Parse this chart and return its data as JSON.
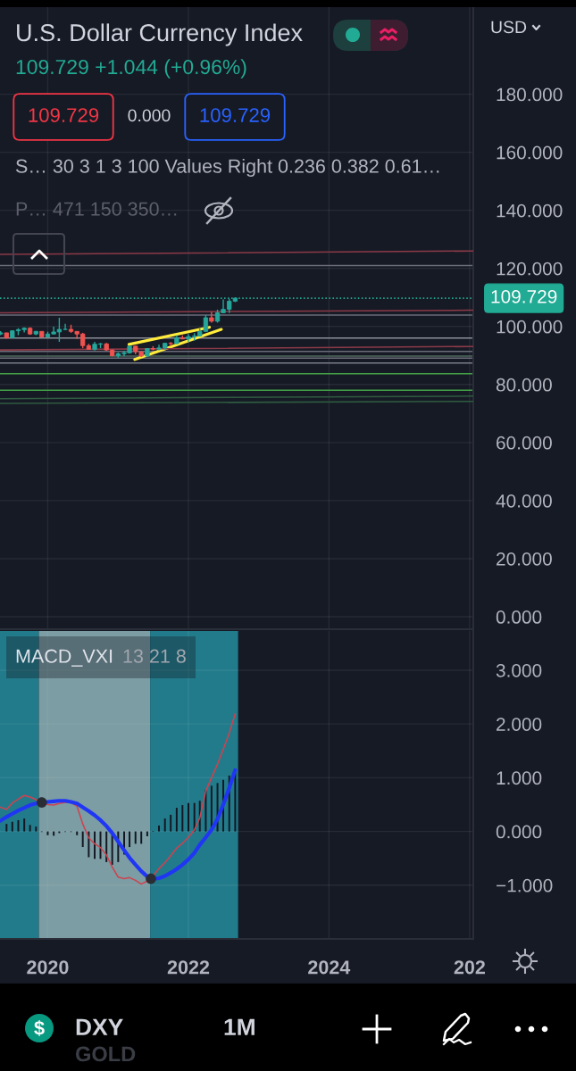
{
  "chart_data": [
    {
      "type": "candlestick",
      "title": "U.S. Dollar Currency Index",
      "subtitle": "109.729 +1.044 (+0.96%)",
      "annotations": [
        "109.729",
        "0.000",
        "109.729",
        "S… 30 3 1 3 100 Values Right 0.236 0.382 0.61…",
        "P… 471 150 350…",
        "USD",
        "DXY",
        "1M",
        "GOLD"
      ],
      "series": [
        {
          "x": [
            "2019-05",
            "2019-06",
            "2019-07",
            "2019-08",
            "2019-09",
            "2019-10",
            "2019-11",
            "2019-12",
            "2020-01",
            "2020-02",
            "2020-03",
            "2020-04",
            "2020-05",
            "2020-06",
            "2020-07",
            "2020-08",
            "2020-09",
            "2020-10",
            "2020-11",
            "2020-12",
            "2021-01",
            "2021-02",
            "2021-03",
            "2021-04",
            "2021-05",
            "2021-06",
            "2021-07",
            "2021-08",
            "2021-09",
            "2021-10",
            "2021-11",
            "2021-12",
            "2022-01",
            "2022-02",
            "2022-03",
            "2022-04",
            "2022-05",
            "2022-06",
            "2022-07",
            "2022-08",
            "2022-09"
          ],
          "ohlc": [
            [
              97.4,
              98.4,
              97.0,
              97.8
            ],
            [
              97.8,
              97.8,
              95.8,
              96.1
            ],
            [
              96.1,
              98.7,
              95.9,
              98.5
            ],
            [
              98.5,
              99.4,
              97.0,
              98.9
            ],
            [
              98.9,
              99.7,
              97.9,
              99.4
            ],
            [
              99.4,
              99.7,
              97.1,
              97.4
            ],
            [
              97.4,
              98.5,
              97.0,
              98.3
            ],
            [
              98.3,
              98.3,
              96.4,
              96.4
            ],
            [
              96.4,
              98.2,
              96.2,
              97.4
            ],
            [
              97.4,
              99.9,
              97.3,
              98.1
            ],
            [
              98.1,
              103.0,
              94.7,
              99.0
            ],
            [
              99.0,
              100.9,
              98.8,
              99.0
            ],
            [
              99.0,
              100.6,
              97.8,
              98.3
            ],
            [
              98.3,
              98.3,
              95.7,
              97.4
            ],
            [
              97.4,
              97.8,
              92.5,
              93.4
            ],
            [
              93.4,
              94.0,
              92.1,
              92.1
            ],
            [
              92.1,
              94.7,
              91.7,
              93.9
            ],
            [
              93.9,
              94.3,
              92.5,
              94.0
            ],
            [
              94.0,
              94.3,
              91.6,
              91.9
            ],
            [
              91.9,
              92.0,
              89.7,
              89.9
            ],
            [
              89.9,
              91.0,
              89.2,
              90.6
            ],
            [
              90.6,
              91.6,
              89.7,
              90.9
            ],
            [
              90.9,
              93.4,
              90.6,
              93.2
            ],
            [
              93.2,
              93.4,
              90.4,
              91.3
            ],
            [
              91.3,
              91.4,
              89.5,
              89.8
            ],
            [
              89.8,
              92.4,
              89.5,
              92.4
            ],
            [
              92.4,
              93.2,
              91.8,
              92.2
            ],
            [
              92.2,
              93.7,
              91.8,
              92.6
            ],
            [
              92.6,
              94.4,
              91.9,
              94.2
            ],
            [
              94.2,
              94.6,
              93.3,
              94.1
            ],
            [
              94.1,
              96.9,
              93.9,
              96.0
            ],
            [
              96.0,
              96.9,
              95.6,
              95.7
            ],
            [
              95.7,
              97.4,
              94.6,
              96.5
            ],
            [
              96.5,
              97.7,
              95.1,
              96.7
            ],
            [
              96.7,
              99.4,
              96.7,
              98.3
            ],
            [
              98.3,
              103.9,
              98.2,
              103.0
            ],
            [
              103.0,
              105.0,
              101.3,
              101.8
            ],
            [
              101.8,
              105.8,
              101.3,
              104.7
            ],
            [
              104.7,
              109.3,
              104.6,
              105.9
            ],
            [
              105.9,
              109.5,
              104.6,
              108.7
            ],
            [
              108.7,
              110.0,
              108.4,
              109.729
            ]
          ],
          "colors": [
            "#26a69a",
            "#ef5350",
            "#26a69a",
            "#26a69a",
            "#26a69a",
            "#ef5350",
            "#26a69a",
            "#ef5350",
            "#26a69a",
            "#26a69a",
            "#26a69a",
            "#26a69a",
            "#ef5350",
            "#ef5350",
            "#ef5350",
            "#ef5350",
            "#26a69a",
            "#26a69a",
            "#ef5350",
            "#ef5350",
            "#26a69a",
            "#26a69a",
            "#26a69a",
            "#ef5350",
            "#ef5350",
            "#26a69a",
            "#ef5350",
            "#26a69a",
            "#26a69a",
            "#ef5350",
            "#26a69a",
            "#ef5350",
            "#26a69a",
            "#26a69a",
            "#26a69a",
            "#26a69a",
            "#ef5350",
            "#26a69a",
            "#26a69a",
            "#26a69a",
            "#26a69a"
          ]
        },
        {
          "type": "line",
          "color": "#ffeb3b",
          "x": [
            "2021-02-26",
            "2022-04-20"
          ],
          "values": [
            93.8,
            99.7
          ]
        },
        {
          "type": "line",
          "color": "#ffeb3b",
          "x": [
            "2021-03-28",
            "2022-06-21"
          ],
          "values": [
            88.6,
            99.0
          ]
        },
        {
          "type": "line",
          "color": "#8c3a48",
          "x": [
            "2019-04-28",
            "2026-01-20"
          ],
          "values": [
            124.8,
            126.0
          ]
        },
        {
          "type": "line",
          "color": "#8c3a48",
          "x": [
            "2019-04-28",
            "2026-01-20"
          ],
          "values": [
            104.7,
            105.6
          ]
        },
        {
          "type": "line",
          "color": "#8c3a48",
          "x": [
            "2019-04-28",
            "2026-01-20"
          ],
          "values": [
            91.9,
            93.1
          ]
        },
        {
          "type": "line",
          "color": "#2f5b40",
          "x": [
            "2019-04-28",
            "2026-01-20"
          ],
          "values": [
            75.1,
            76.0
          ]
        },
        {
          "type": "line",
          "color": "#2f5b40",
          "x": [
            "2019-04-28",
            "2026-01-20"
          ],
          "values": [
            73.5,
            74.2
          ]
        }
      ],
      "ref_lines": [
        {
          "axis": "y",
          "value": 109.729,
          "label": "109.729",
          "color": "#22ab94",
          "line_style": "dotted"
        },
        {
          "axis": "y",
          "value": 121.0,
          "color": "#6a6d78"
        },
        {
          "axis": "y",
          "value": 103.9,
          "color": "#6a6d78"
        },
        {
          "axis": "y",
          "value": 96.0,
          "color": "#8a8d96"
        },
        {
          "axis": "y",
          "value": 91.4,
          "color": "#6a6d78"
        },
        {
          "axis": "y",
          "value": 89.8,
          "color": "#4f6b5c"
        },
        {
          "axis": "y",
          "value": 89.1,
          "color": "#6a6d78"
        },
        {
          "axis": "y",
          "value": 87.4,
          "color": "#7a7d86"
        },
        {
          "axis": "y",
          "value": 83.7,
          "color": "#43a047"
        },
        {
          "axis": "y",
          "value": 78.0,
          "color": "#43a047"
        }
      ],
      "xlim": [
        "2019-04-28",
        "2026-01-20"
      ],
      "xticks": [
        "2020",
        "2022",
        "2024",
        "2026"
      ],
      "ylim": [
        -4.3,
        210
      ],
      "yticks": [
        {
          "value": 0,
          "label": "0.000"
        },
        {
          "value": 20,
          "label": "20.000"
        },
        {
          "value": 40,
          "label": "40.000"
        },
        {
          "value": 60,
          "label": "60.000"
        },
        {
          "value": 80,
          "label": "80.000"
        },
        {
          "value": 100,
          "label": "100.000"
        },
        {
          "value": 120,
          "label": "120.000"
        },
        {
          "value": 140,
          "label": "140.000"
        },
        {
          "value": 160,
          "label": "160.000"
        },
        {
          "value": 180,
          "label": "180.000"
        }
      ],
      "grid": true,
      "tick_labels": "y"
    },
    {
      "type": "line",
      "title": "MACD_VXI",
      "subtitle": "13 21 8",
      "series": [
        {
          "type": "bar",
          "color": "#131722",
          "x": [
            "2019-06",
            "2019-07",
            "2019-08",
            "2019-09",
            "2019-10",
            "2019-11",
            "2019-12",
            "2020-01",
            "2020-02",
            "2020-03",
            "2020-04",
            "2020-05",
            "2020-06",
            "2020-07",
            "2020-08",
            "2020-09",
            "2020-10",
            "2020-11",
            "2020-12",
            "2021-01",
            "2021-02",
            "2021-03",
            "2021-04",
            "2021-05",
            "2021-06",
            "2021-07",
            "2021-08",
            "2021-09",
            "2021-10",
            "2021-11",
            "2021-12",
            "2022-01",
            "2022-02",
            "2022-03",
            "2022-04",
            "2022-05",
            "2022-06",
            "2022-07",
            "2022-08",
            "2022-09"
          ],
          "values": [
            0.14,
            0.18,
            0.21,
            0.24,
            0.12,
            0.09,
            -0.01,
            -0.07,
            -0.08,
            -0.03,
            -0.01,
            -0.01,
            -0.07,
            -0.29,
            -0.48,
            -0.51,
            -0.51,
            -0.57,
            -0.62,
            -0.57,
            -0.43,
            -0.29,
            -0.23,
            -0.23,
            -0.09,
            0.01,
            0.11,
            0.24,
            0.31,
            0.44,
            0.49,
            0.53,
            0.53,
            0.57,
            0.77,
            0.85,
            0.9,
            0.96,
            1.04,
            1.09
          ]
        },
        {
          "color": "#d0424f",
          "x": [
            "2019-05",
            "2019-06",
            "2019-07",
            "2019-08",
            "2019-09",
            "2019-10",
            "2019-11",
            "2019-12",
            "2020-01",
            "2020-02",
            "2020-03",
            "2020-04",
            "2020-05",
            "2020-06",
            "2020-07",
            "2020-08",
            "2020-09",
            "2020-10",
            "2020-11",
            "2020-12",
            "2021-01",
            "2021-02",
            "2021-03",
            "2021-04",
            "2021-05",
            "2021-06",
            "2021-07",
            "2021-08",
            "2021-09",
            "2021-10",
            "2021-11",
            "2021-12",
            "2022-01",
            "2022-02",
            "2022-03",
            "2022-04",
            "2022-05",
            "2022-06",
            "2022-07",
            "2022-08",
            "2022-09"
          ],
          "values": [
            0.45,
            0.41,
            0.53,
            0.6,
            0.67,
            0.64,
            0.59,
            0.54,
            0.5,
            0.49,
            0.52,
            0.54,
            0.54,
            0.47,
            0.14,
            -0.12,
            -0.23,
            -0.3,
            -0.44,
            -0.66,
            -0.85,
            -0.88,
            -0.86,
            -0.91,
            -0.98,
            -0.92,
            -0.83,
            -0.69,
            -0.58,
            -0.45,
            -0.31,
            -0.22,
            -0.11,
            0.03,
            0.25,
            0.75,
            1.0,
            1.25,
            1.53,
            1.83,
            2.19
          ]
        },
        {
          "color": "#2036f5",
          "x": [
            "2019-05",
            "2019-06",
            "2019-07",
            "2019-08",
            "2019-09",
            "2019-10",
            "2019-11",
            "2019-12",
            "2020-01",
            "2020-02",
            "2020-03",
            "2020-04",
            "2020-05",
            "2020-06",
            "2020-07",
            "2020-08",
            "2020-09",
            "2020-10",
            "2020-11",
            "2020-12",
            "2021-01",
            "2021-02",
            "2021-03",
            "2021-04",
            "2021-05",
            "2021-06",
            "2021-07",
            "2021-08",
            "2021-09",
            "2021-10",
            "2021-11",
            "2021-12",
            "2022-01",
            "2022-02",
            "2022-03",
            "2022-04",
            "2022-05",
            "2022-06",
            "2022-07",
            "2022-08",
            "2022-09"
          ],
          "values": [
            0.2,
            0.27,
            0.33,
            0.39,
            0.44,
            0.49,
            0.52,
            0.54,
            0.55,
            0.56,
            0.57,
            0.57,
            0.55,
            0.52,
            0.45,
            0.38,
            0.3,
            0.21,
            0.1,
            -0.03,
            -0.19,
            -0.35,
            -0.49,
            -0.62,
            -0.74,
            -0.84,
            -0.88,
            -0.87,
            -0.83,
            -0.77,
            -0.7,
            -0.62,
            -0.52,
            -0.4,
            -0.25,
            -0.11,
            0.03,
            0.23,
            0.5,
            0.81,
            1.14
          ]
        },
        {
          "type": "scatter",
          "color": "#2a2d34",
          "marker": "circle",
          "x": [
            "2019-12",
            "2021-06-20"
          ],
          "values": [
            0.54,
            -0.88
          ]
        }
      ],
      "bands": [
        {
          "axis": "x",
          "from": "2019-04-28",
          "to": "2019-11-16",
          "color": "#227b8b"
        },
        {
          "axis": "x",
          "from": "2019-11-16",
          "to": "2021-06-16",
          "color": "#7b9da3"
        },
        {
          "axis": "x",
          "from": "2021-06-16",
          "to": "2022-09-16",
          "color": "#227b8b"
        }
      ],
      "xlim": [
        "2019-04-28",
        "2026-01-20"
      ],
      "xticks": [
        "2020",
        "2022",
        "2024",
        {
          "value": "2026",
          "label": "202"
        }
      ],
      "ylim": [
        -2.0,
        3.73
      ],
      "yticks": [
        {
          "value": -1,
          "label": "−1.000"
        },
        {
          "value": 0,
          "label": "0.000"
        },
        {
          "value": 1,
          "label": "1.000"
        },
        {
          "value": 2,
          "label": "2.000"
        },
        {
          "value": 3,
          "label": "3.000"
        }
      ],
      "grid": true
    }
  ]
}
